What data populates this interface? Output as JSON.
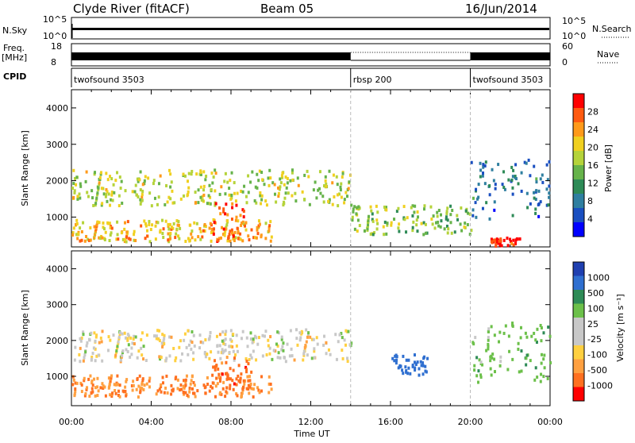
{
  "header": {
    "station": "Clyde River (fitACF)",
    "beam": "Beam 05",
    "date": "16/Jun/2014"
  },
  "panels": {
    "nsky": {
      "left_label": "N.Sky",
      "right_label": "N.Search",
      "ticks_left": [
        "10^5",
        "10^0"
      ],
      "ticks_right": [
        "10^5",
        "10^0"
      ]
    },
    "freq": {
      "left_label": "Freq.",
      "left_unit": "[MHz]",
      "right_label": "Nave",
      "ticks_left": [
        "18",
        "8"
      ],
      "ticks_right": [
        "60",
        "0"
      ]
    },
    "cpid": {
      "label": "CPID",
      "segments": [
        {
          "name": "twofsound 3503",
          "start_hour": 0,
          "end_hour": 14
        },
        {
          "name": "rbsp 200",
          "start_hour": 14,
          "end_hour": 20
        },
        {
          "name": "twofsound 3503",
          "start_hour": 20,
          "end_hour": 24
        }
      ]
    }
  },
  "colors": {
    "power_scale": [
      "#0000ff",
      "#1a4fc0",
      "#2f7fa0",
      "#2e8b57",
      "#66b34a",
      "#b5d33a",
      "#f0d020",
      "#ff9a1a",
      "#ff5a10",
      "#ff0000"
    ],
    "velocity_scale": [
      "#1f3fb0",
      "#2f6fd0",
      "#2e8b57",
      "#6cc04a",
      "#c8c8c8",
      "#c8c8c8",
      "#ffd040",
      "#ffa040",
      "#ff7020",
      "#ff0000"
    ]
  },
  "chart_data": [
    {
      "type": "heatmap",
      "title": "Power",
      "xlabel": "Time UT",
      "ylabel": "Slant Range [km]",
      "xlim": [
        0,
        24
      ],
      "ylim": [
        180,
        4500
      ],
      "xticks": [
        "00:00",
        "04:00",
        "08:00",
        "12:00",
        "16:00",
        "20:00",
        "00:00"
      ],
      "yticks": [
        1000,
        2000,
        3000,
        4000
      ],
      "colorbar": {
        "label": "Power [dB]",
        "range": [
          0,
          32
        ],
        "ticks": [
          "28",
          "24",
          "20",
          "16",
          "12",
          "8",
          "4"
        ]
      },
      "bands": [
        {
          "start_hour": 0,
          "end_hour": 14,
          "range_km": [
            1300,
            2300
          ],
          "db": 18
        },
        {
          "start_hour": 0,
          "end_hour": 10,
          "range_km": [
            300,
            900
          ],
          "db": 22
        },
        {
          "start_hour": 7,
          "end_hour": 9,
          "range_km": [
            300,
            1400
          ],
          "db": 26
        },
        {
          "start_hour": 14,
          "end_hour": 20,
          "range_km": [
            500,
            1300
          ],
          "db": 16
        },
        {
          "start_hour": 20,
          "end_hour": 24,
          "range_km": [
            900,
            2600
          ],
          "db": 8
        },
        {
          "start_hour": 21,
          "end_hour": 22.5,
          "range_km": [
            180,
            400
          ],
          "db": 30
        }
      ]
    },
    {
      "type": "heatmap",
      "title": "Velocity",
      "xlabel": "Time UT",
      "ylabel": "Slant Range [km]",
      "xlim": [
        0,
        24
      ],
      "ylim": [
        180,
        4500
      ],
      "xticks": [
        "00:00",
        "04:00",
        "08:00",
        "12:00",
        "16:00",
        "20:00",
        "00:00"
      ],
      "yticks": [
        1000,
        2000,
        3000,
        4000
      ],
      "colorbar": {
        "label": "Velocity [m s⁻¹]",
        "ticks": [
          "1000",
          "500",
          "100",
          "25",
          "-25",
          "-100",
          "-500",
          "-1000"
        ]
      },
      "bands": [
        {
          "start_hour": 0,
          "end_hour": 14,
          "range_km": [
            1400,
            2300
          ],
          "velocity": 0
        },
        {
          "start_hour": 0,
          "end_hour": 10,
          "range_km": [
            400,
            1000
          ],
          "velocity": -300
        },
        {
          "start_hour": 7,
          "end_hour": 9,
          "range_km": [
            600,
            1500
          ],
          "velocity": -400
        },
        {
          "start_hour": 16,
          "end_hour": 18,
          "range_km": [
            1000,
            1600
          ],
          "velocity": 800
        },
        {
          "start_hour": 20,
          "end_hour": 24,
          "range_km": [
            800,
            2500
          ],
          "velocity": 200
        }
      ]
    }
  ]
}
